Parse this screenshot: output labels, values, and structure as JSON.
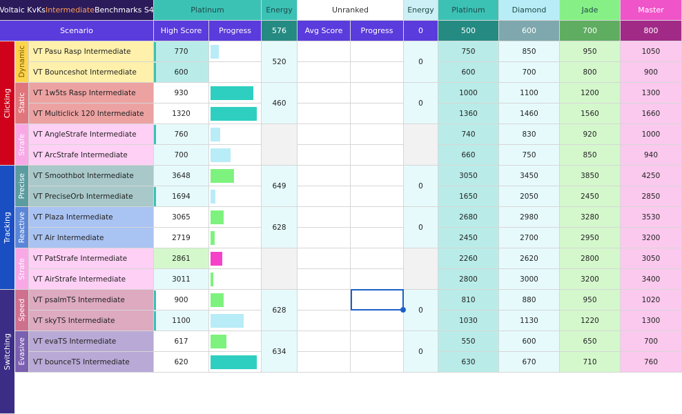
{
  "title": {
    "prefix": "Voltaic KvKs ",
    "highlight": "Intermediate",
    "suffix": " Benchmarks S4"
  },
  "top_headers": {
    "platinum": "Platinum",
    "energy": "Energy",
    "unranked": "Unranked",
    "energy2": "Energy",
    "platinum2": "Platinum",
    "diamond": "Diamond",
    "jade": "Jade",
    "master": "Master"
  },
  "sub_headers": {
    "scenario": "Scenario",
    "high_score": "High Score",
    "progress": "Progress",
    "energy_total": "576",
    "avg_score": "Avg Score",
    "progress2": "Progress",
    "energy_unranked": "0",
    "thr_platinum": "500",
    "thr_diamond": "600",
    "thr_jade": "700",
    "thr_master": "800"
  },
  "categories": [
    {
      "name": "Clicking",
      "color": "#d0021b"
    },
    {
      "name": "Tracking",
      "color": "#1a4fc4"
    },
    {
      "name": "Switching",
      "color": "#3b2d86"
    }
  ],
  "subcategories": [
    {
      "name": "Dynamic",
      "color": "#fcd34d",
      "text": "#7a5b00"
    },
    {
      "name": "Static",
      "color": "#e0767c",
      "text": "#ffffff"
    },
    {
      "name": "Strafe",
      "color": "#f9a8e6",
      "text": "#ffffff"
    },
    {
      "name": "Precise",
      "color": "#5b9ca0",
      "text": "#ffffff"
    },
    {
      "name": "Reactive",
      "color": "#5b86d8",
      "text": "#ffffff"
    },
    {
      "name": "Strafe",
      "color": "#f9a8e6",
      "text": "#ffffff"
    },
    {
      "name": "Speed",
      "color": "#d0708f",
      "text": "#ffffff"
    },
    {
      "name": "Evasive",
      "color": "#7b5fb0",
      "text": "#ffffff"
    }
  ],
  "group_energy": [
    "520",
    "460",
    "",
    "649",
    "628",
    "",
    "628",
    "634"
  ],
  "group_energy_unranked": [
    "0",
    "0",
    "",
    "0",
    "0",
    "",
    "0",
    "0"
  ],
  "rows": [
    {
      "scenario": "VT Pasu Rasp Intermediate",
      "high": "770",
      "progress": 0.17,
      "bar": "#b8ecf6",
      "t": [
        "750",
        "850",
        "950",
        "1050"
      ]
    },
    {
      "scenario": "VT Bounceshot Intermediate",
      "high": "600",
      "progress": 0,
      "bar": "#b8ecf6",
      "t": [
        "600",
        "700",
        "800",
        "900"
      ]
    },
    {
      "scenario": "VT 1w5ts Rasp Intermediate",
      "high": "930",
      "progress": 0.88,
      "bar": "#2ecfc0",
      "t": [
        "1000",
        "1100",
        "1200",
        "1300"
      ]
    },
    {
      "scenario": "VT Multiclick 120 Intermediate",
      "high": "1320",
      "progress": 0.96,
      "bar": "#2ecfc0",
      "t": [
        "1360",
        "1460",
        "1560",
        "1660"
      ]
    },
    {
      "scenario": "VT AngleStrafe Intermediate",
      "high": "760",
      "progress": 0.2,
      "bar": "#b8ecf6",
      "t": [
        "740",
        "830",
        "920",
        "1000"
      ]
    },
    {
      "scenario": "VT ArcStrafe Intermediate",
      "high": "700",
      "progress": 0.42,
      "bar": "#b8ecf6",
      "t": [
        "660",
        "750",
        "850",
        "940"
      ]
    },
    {
      "scenario": "VT Smoothbot Intermediate",
      "high": "3648",
      "progress": 0.48,
      "bar": "#7ef27e",
      "t": [
        "3050",
        "3450",
        "3850",
        "4250"
      ]
    },
    {
      "scenario": "VT PreciseOrb Intermediate",
      "high": "1694",
      "progress": 0.1,
      "bar": "#b8ecf6",
      "t": [
        "1650",
        "2050",
        "2450",
        "2850"
      ]
    },
    {
      "scenario": "VT Plaza Intermediate",
      "high": "3065",
      "progress": 0.27,
      "bar": "#7ef27e",
      "t": [
        "2680",
        "2980",
        "3280",
        "3530"
      ]
    },
    {
      "scenario": "VT Air Intermediate",
      "high": "2719",
      "progress": 0.08,
      "bar": "#7ef27e",
      "t": [
        "2450",
        "2700",
        "2950",
        "3200"
      ]
    },
    {
      "scenario": "VT PatStrafe Intermediate",
      "high": "2861",
      "progress": 0.24,
      "bar": "#f542c8",
      "t": [
        "2260",
        "2620",
        "2800",
        "3050"
      ]
    },
    {
      "scenario": "VT AirStrafe Intermediate",
      "high": "3011",
      "progress": 0.06,
      "bar": "#7ef27e",
      "t": [
        "2800",
        "3000",
        "3200",
        "3400"
      ]
    },
    {
      "scenario": "VT psalmTS Intermediate",
      "high": "900",
      "progress": 0.27,
      "bar": "#7ef27e",
      "t": [
        "810",
        "880",
        "950",
        "1020"
      ]
    },
    {
      "scenario": "VT skyTS Intermediate",
      "high": "1100",
      "progress": 0.68,
      "bar": "#b8ecf6",
      "t": [
        "1030",
        "1130",
        "1220",
        "1300"
      ]
    },
    {
      "scenario": "VT evaTS Intermediate",
      "high": "617",
      "progress": 0.33,
      "bar": "#7ef27e",
      "t": [
        "550",
        "600",
        "650",
        "700"
      ]
    },
    {
      "scenario": "VT bounceTS Intermediate",
      "high": "620",
      "progress": 0.95,
      "bar": "#2ecfc0",
      "t": [
        "630",
        "670",
        "710",
        "760"
      ]
    }
  ]
}
